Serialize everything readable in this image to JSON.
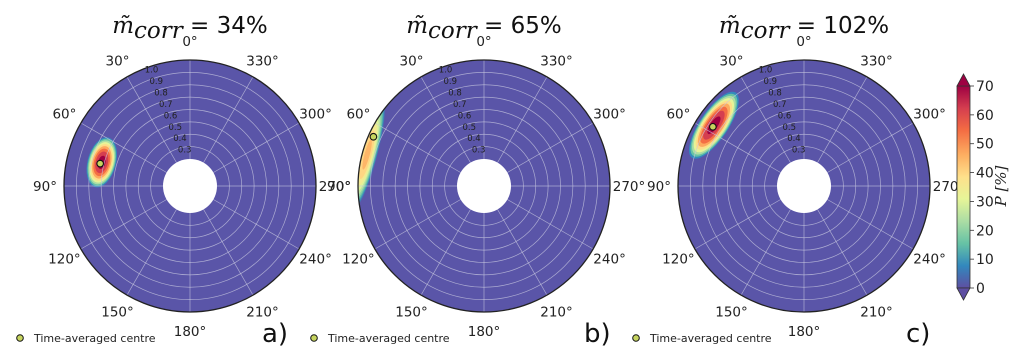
{
  "chart_data": [
    {
      "type": "polar-contour",
      "title_symbol": "m̃",
      "title_subscript": "corr",
      "title_value": "34%",
      "panel_label": "a)",
      "angle_ticks": [
        "0°",
        "330°",
        "300°",
        "270°",
        "240°",
        "210°",
        "180°",
        "150°",
        "120°",
        "90°",
        "60°",
        "30°"
      ],
      "radial_ticks": [
        "1.0",
        "0.9",
        "0.8",
        "0.7",
        "0.6",
        "0.5",
        "0.4",
        "0.3"
      ],
      "rlim": [
        0.2,
        1.0
      ],
      "legend_label": "Time-averaged centre",
      "hotspot": {
        "theta_deg": 75,
        "r": 0.72,
        "theta_spread_deg": 7,
        "r_spread": 0.05,
        "peak": 70
      },
      "centre": {
        "theta_deg": 76,
        "r": 0.73
      }
    },
    {
      "type": "polar-contour",
      "title_symbol": "m̃",
      "title_subscript": "corr",
      "title_value": "65%",
      "panel_label": "b)",
      "angle_ticks": [
        "0°",
        "330°",
        "300°",
        "270°",
        "240°",
        "210°",
        "180°",
        "150°",
        "120°",
        "90°",
        "60°",
        "30°"
      ],
      "radial_ticks": [
        "1.0",
        "0.9",
        "0.8",
        "0.7",
        "0.6",
        "0.5",
        "0.4",
        "0.3"
      ],
      "rlim": [
        0.2,
        1.0
      ],
      "legend_label": "Time-averaged centre",
      "hotspot": {
        "theta_deg": 75,
        "r": 0.96,
        "theta_spread_deg": 12,
        "r_spread": 0.035,
        "peak": 45
      },
      "centre": {
        "theta_deg": 66,
        "r": 0.96
      }
    },
    {
      "type": "polar-contour",
      "title_symbol": "m̃",
      "title_subscript": "corr",
      "title_value": "102%",
      "panel_label": "c)",
      "angle_ticks": [
        "0°",
        "330°",
        "300°",
        "270°",
        "240°",
        "210°",
        "180°",
        "150°",
        "120°",
        "90°",
        "60°",
        "30°"
      ],
      "radial_ticks": [
        "1.0",
        "0.9",
        "0.8",
        "0.7",
        "0.6",
        "0.5",
        "0.4",
        "0.3"
      ],
      "rlim": [
        0.2,
        1.0
      ],
      "legend_label": "Time-averaged centre",
      "hotspot": {
        "theta_deg": 56,
        "r": 0.86,
        "theta_spread_deg": 9,
        "r_spread": 0.05,
        "peak": 70
      },
      "centre": {
        "theta_deg": 57,
        "r": 0.86
      }
    }
  ],
  "colorbar": {
    "label": "P [%]",
    "ticks": [
      "70",
      "60",
      "50",
      "40",
      "30",
      "20",
      "10",
      "0"
    ],
    "vmin": 0,
    "vmax": 70,
    "colormap": "Spectral_r"
  },
  "colors": {
    "background_fill": "#5A55A8",
    "centre_marker": "#c6d45f",
    "grid": "#c8c8e0"
  }
}
